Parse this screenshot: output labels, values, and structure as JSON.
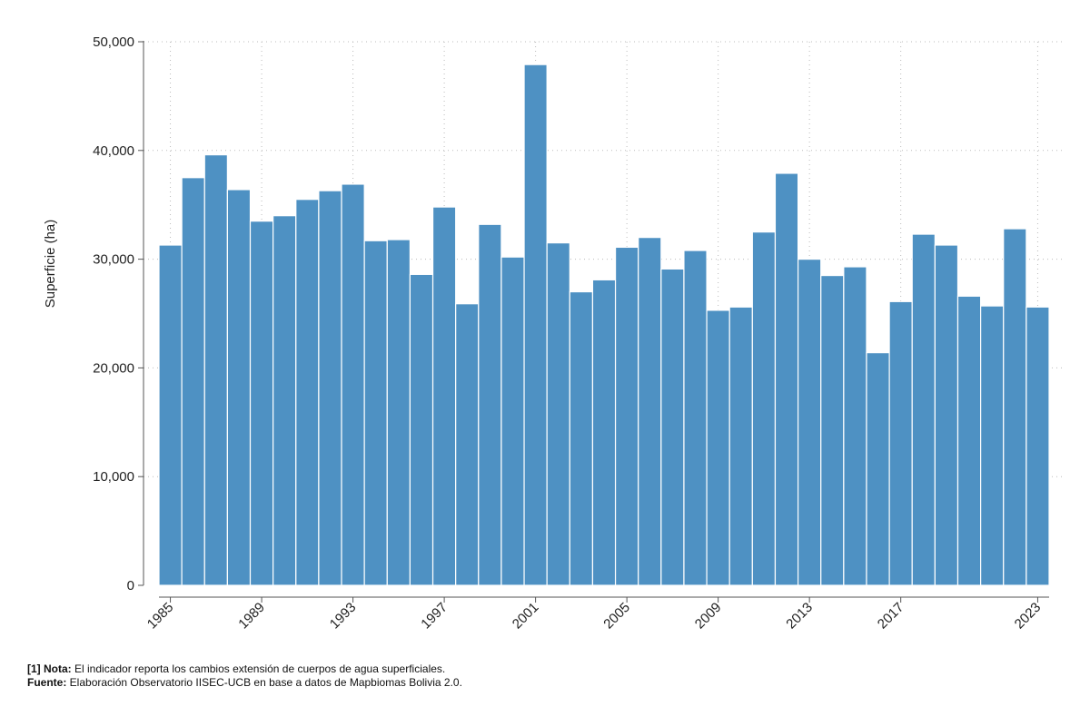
{
  "chart_data": {
    "type": "bar",
    "ylabel": "Superficie (ha)",
    "xlabel": "",
    "ylim": [
      0,
      50000
    ],
    "yticks": [
      0,
      10000,
      20000,
      30000,
      40000,
      50000
    ],
    "ytick_labels": [
      "0",
      "10,000",
      "20,000",
      "30,000",
      "40,000",
      "50,000"
    ],
    "xtick_labels": [
      "1985",
      "1989",
      "1993",
      "1997",
      "2001",
      "2005",
      "2009",
      "2013",
      "2017",
      "2023"
    ],
    "grid": true,
    "bar_color": "#4e91c3",
    "categories": [
      "1985",
      "1986",
      "1987",
      "1988",
      "1989",
      "1990",
      "1991",
      "1992",
      "1993",
      "1994",
      "1995",
      "1996",
      "1997",
      "1998",
      "1999",
      "2000",
      "2001",
      "2002",
      "2003",
      "2004",
      "2005",
      "2006",
      "2007",
      "2008",
      "2009",
      "2010",
      "2011",
      "2012",
      "2013",
      "2014",
      "2015",
      "2016",
      "2017",
      "2018",
      "2019",
      "2020",
      "2021",
      "2022",
      "2023"
    ],
    "values": [
      31300,
      37500,
      39600,
      36400,
      33500,
      34000,
      35500,
      36300,
      36900,
      31700,
      31800,
      28600,
      34800,
      25900,
      33200,
      30200,
      47900,
      31500,
      27000,
      28100,
      31100,
      32000,
      29100,
      30800,
      25300,
      25600,
      32500,
      37900,
      30000,
      28500,
      29300,
      21400,
      26100,
      32300,
      31300,
      26600,
      25700,
      32800,
      25600
    ]
  },
  "notes": {
    "nota_label": "[1] Nota:",
    "nota_text": " El indicador reporta los cambios extensión de cuerpos de agua superficiales.",
    "fuente_label": "Fuente:",
    "fuente_text": " Elaboración Observatorio IISEC-UCB en base a datos de Mapbiomas Bolivia 2.0."
  }
}
